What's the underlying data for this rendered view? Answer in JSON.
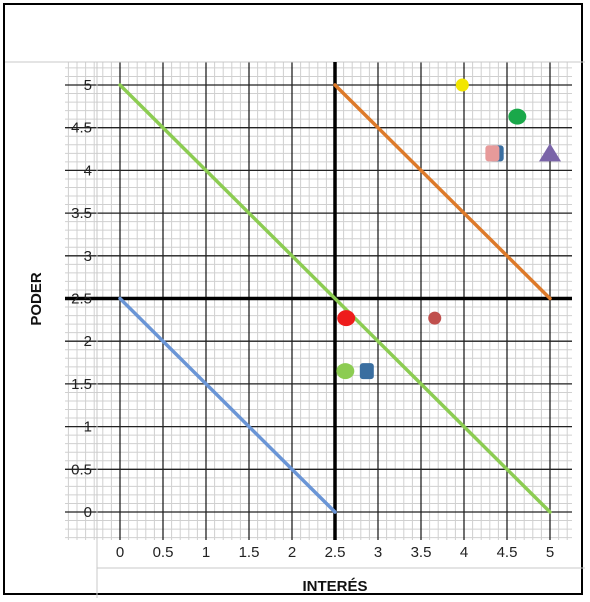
{
  "chart_data": {
    "type": "scatter",
    "title": "",
    "xlabel": "INTERÉS",
    "ylabel": "PODER",
    "xlim": [
      0,
      5
    ],
    "ylim": [
      0,
      5
    ],
    "x_ticks": [
      "0",
      "0.5",
      "1",
      "1.5",
      "2",
      "2.5",
      "3",
      "3.5",
      "4",
      "4.5",
      "5"
    ],
    "y_ticks": [
      "0",
      "0.5",
      "1",
      "1.5",
      "2",
      "2.5",
      "3",
      "3.5",
      "4",
      "4.5",
      "5"
    ],
    "grid": true,
    "minor_grid_step": 0.1,
    "quadrant_dividers": {
      "x": 2.5,
      "y": 2.5
    },
    "lines": [
      {
        "from": [
          0,
          2.5
        ],
        "to": [
          2.5,
          0
        ],
        "color": "#6a95d6"
      },
      {
        "from": [
          0,
          5
        ],
        "to": [
          5,
          0
        ],
        "color": "#8ccc52"
      },
      {
        "from": [
          2.5,
          5
        ],
        "to": [
          5,
          2.5
        ],
        "color": "#dd7a2a"
      }
    ],
    "points": [
      {
        "x": 3.98,
        "y": 5.0,
        "shape": "circle",
        "color": "#f2e600"
      },
      {
        "x": 4.62,
        "y": 4.63,
        "shape": "blob",
        "color": "#1aa84a"
      },
      {
        "x": 4.38,
        "y": 4.2,
        "shape": "square",
        "color": "#3a6ea0"
      },
      {
        "x": 4.33,
        "y": 4.2,
        "shape": "square",
        "color": "#e79a9a"
      },
      {
        "x": 5.0,
        "y": 4.2,
        "shape": "triangle",
        "color": "#7a64a8"
      },
      {
        "x": 2.63,
        "y": 2.27,
        "shape": "blob",
        "color": "#ee1c1c"
      },
      {
        "x": 3.66,
        "y": 2.27,
        "shape": "circle",
        "color": "#c0504d"
      },
      {
        "x": 2.62,
        "y": 1.65,
        "shape": "blob",
        "color": "#8ccc52"
      },
      {
        "x": 2.87,
        "y": 1.65,
        "shape": "square",
        "color": "#3a6ea0"
      }
    ]
  }
}
